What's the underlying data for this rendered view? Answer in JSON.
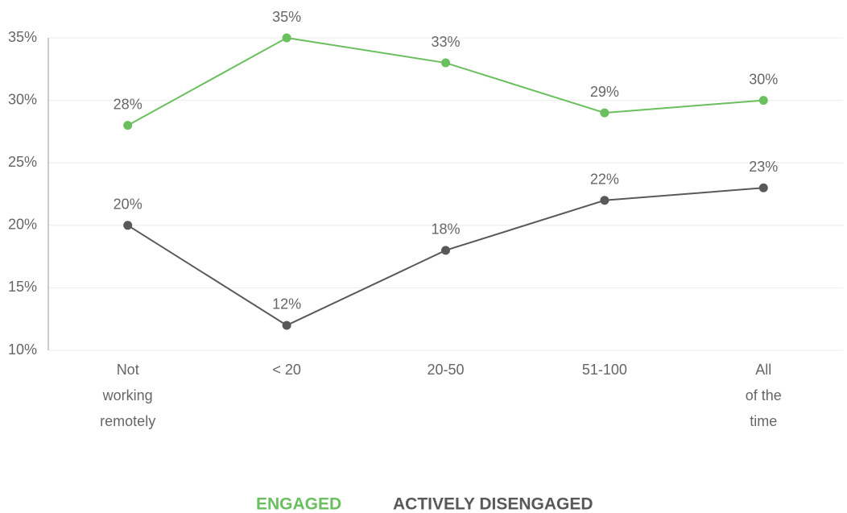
{
  "chart_data": {
    "type": "line",
    "categories": [
      "Not\nworking\nremotely",
      "< 20",
      "20-50",
      "51-100",
      "All\nof the\ntime"
    ],
    "series": [
      {
        "name": "ENGAGED",
        "color": "#6abf5e",
        "values": [
          28,
          35,
          33,
          29,
          30
        ],
        "value_labels": [
          "28%",
          "35%",
          "33%",
          "29%",
          "30%"
        ]
      },
      {
        "name": "ACTIVELY DISENGAGED",
        "color": "#58595b",
        "values": [
          20,
          12,
          18,
          22,
          23
        ],
        "value_labels": [
          "20%",
          "12%",
          "18%",
          "22%",
          "23%"
        ]
      }
    ],
    "ylim": [
      10,
      35
    ],
    "yticks": [
      {
        "value": 10,
        "label": "10%"
      },
      {
        "value": 15,
        "label": "15%"
      },
      {
        "value": 20,
        "label": "20%"
      },
      {
        "value": 25,
        "label": "25%"
      },
      {
        "value": 30,
        "label": "30%"
      },
      {
        "value": 35,
        "label": "35%"
      }
    ],
    "grid": true
  }
}
